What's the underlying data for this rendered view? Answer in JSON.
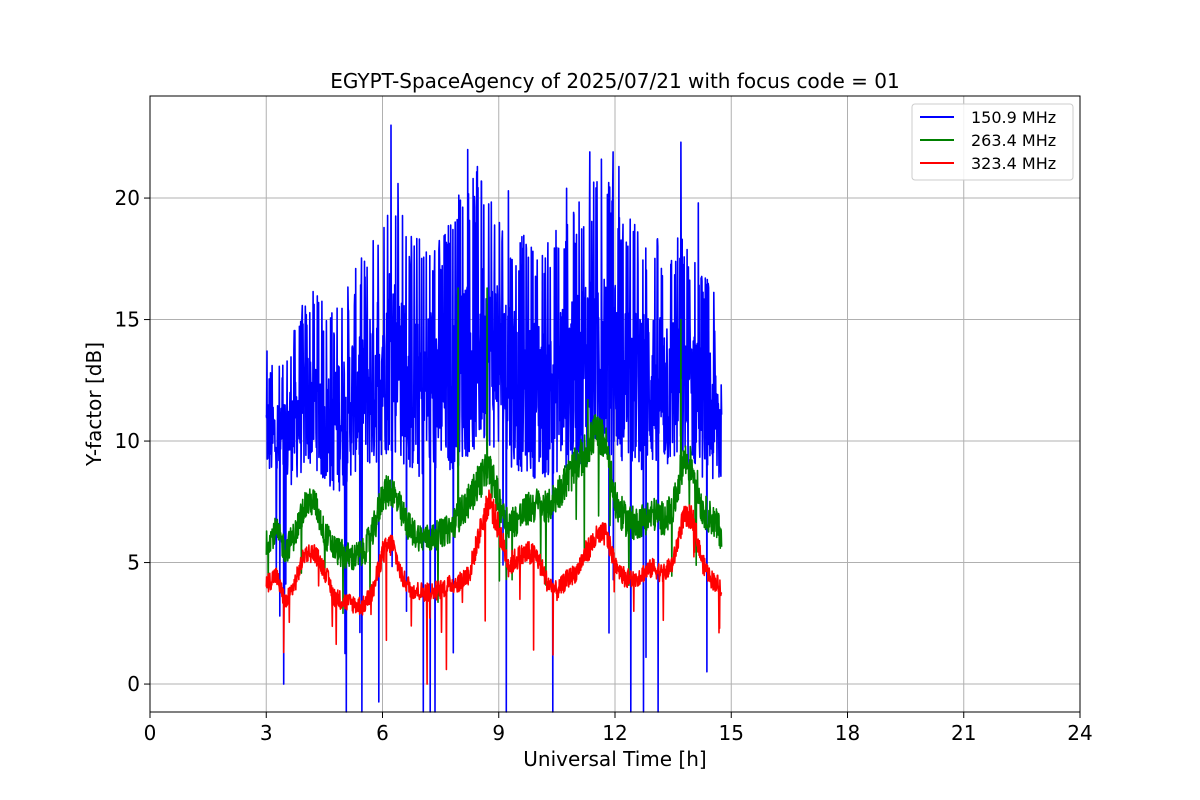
{
  "chart_data": {
    "type": "line",
    "title": "EGYPT-SpaceAgency of 2025/07/21 with focus code = 01",
    "xlabel": "Universal Time [h]",
    "ylabel": "Y-factor [dB]",
    "xlim": [
      0,
      24
    ],
    "ylim": [
      -1.15,
      24.2
    ],
    "xticks": [
      0,
      3,
      6,
      9,
      12,
      15,
      18,
      21,
      24
    ],
    "yticks": [
      0,
      5,
      10,
      15,
      20
    ],
    "grid": true,
    "legend_position": "top-right",
    "x_start": 3.0,
    "x_end": 14.75,
    "x": [
      3.0,
      3.25,
      3.5,
      3.75,
      4.0,
      4.25,
      4.5,
      4.75,
      5.0,
      5.25,
      5.5,
      5.75,
      6.0,
      6.25,
      6.5,
      6.75,
      7.0,
      7.25,
      7.5,
      7.75,
      8.0,
      8.25,
      8.5,
      8.75,
      9.0,
      9.25,
      9.5,
      9.75,
      10.0,
      10.25,
      10.5,
      10.75,
      11.0,
      11.25,
      11.5,
      11.75,
      12.0,
      12.25,
      12.5,
      12.75,
      13.0,
      13.25,
      13.5,
      13.75,
      14.0,
      14.25,
      14.5,
      14.75
    ],
    "series": [
      {
        "name": "150.9 MHz",
        "color": "#0000ff",
        "values": [
          10.5,
          10.0,
          10.2,
          10.8,
          11.5,
          11.8,
          11.0,
          10.8,
          11.2,
          11.8,
          12.2,
          12.5,
          13.5,
          14.0,
          13.2,
          12.5,
          12.2,
          12.5,
          12.2,
          12.8,
          13.5,
          13.8,
          14.0,
          14.2,
          13.6,
          13.0,
          12.5,
          12.4,
          12.2,
          12.2,
          12.6,
          12.8,
          13.0,
          13.4,
          13.8,
          14.0,
          13.5,
          13.0,
          12.8,
          12.6,
          12.5,
          12.4,
          12.5,
          12.6,
          12.3,
          12.0,
          11.2,
          10.5
        ],
        "spread": [
          1.8,
          2.0,
          2.2,
          2.5,
          2.8,
          2.8,
          3.0,
          3.0,
          3.2,
          3.2,
          3.5,
          3.8,
          4.2,
          4.5,
          4.2,
          4.0,
          4.0,
          4.0,
          4.0,
          4.2,
          4.5,
          4.5,
          4.5,
          4.5,
          4.2,
          4.0,
          3.8,
          3.8,
          3.8,
          3.8,
          4.0,
          4.0,
          4.2,
          4.5,
          4.5,
          4.5,
          4.2,
          4.0,
          4.0,
          3.8,
          3.8,
          3.8,
          3.8,
          3.8,
          3.5,
          3.5,
          3.2,
          3.0
        ],
        "peaks": [
          [
            3.45,
            0.0
          ],
          [
            3.02,
            13.7
          ],
          [
            3.35,
            2.8
          ],
          [
            4.35,
            15.7
          ],
          [
            5.45,
            16.1
          ],
          [
            6.22,
            23.0
          ],
          [
            6.4,
            20.6
          ],
          [
            6.62,
            3.0
          ],
          [
            8.2,
            22.0
          ],
          [
            8.45,
            21.3
          ],
          [
            8.55,
            20.7
          ],
          [
            9.25,
            20.3
          ],
          [
            10.75,
            20.4
          ],
          [
            11.35,
            21.9
          ],
          [
            11.65,
            21.6
          ],
          [
            11.95,
            21.9
          ],
          [
            12.1,
            21.3
          ],
          [
            12.8,
            1.1
          ],
          [
            13.7,
            22.3
          ],
          [
            14.15,
            19.8
          ]
        ]
      },
      {
        "name": "263.4 MHz",
        "color": "#008000",
        "values": [
          5.8,
          6.3,
          5.5,
          6.2,
          7.4,
          7.5,
          6.2,
          5.6,
          5.3,
          5.2,
          5.4,
          6.2,
          7.8,
          8.0,
          7.0,
          6.3,
          6.0,
          6.0,
          6.2,
          6.4,
          7.0,
          7.6,
          8.4,
          8.8,
          7.6,
          6.6,
          6.8,
          7.2,
          7.4,
          7.2,
          7.8,
          8.4,
          9.0,
          9.6,
          10.4,
          10.0,
          7.5,
          6.8,
          6.6,
          6.8,
          7.0,
          6.8,
          7.2,
          9.2,
          9.0,
          7.2,
          6.8,
          6.2
        ],
        "spread": [
          0.5,
          0.6,
          0.6,
          0.6,
          0.6,
          0.6,
          0.6,
          0.6,
          0.6,
          0.6,
          0.6,
          0.7,
          0.7,
          0.7,
          0.7,
          0.6,
          0.6,
          0.6,
          0.6,
          0.6,
          0.7,
          0.7,
          0.8,
          0.8,
          0.8,
          0.7,
          0.7,
          0.7,
          0.7,
          0.7,
          0.7,
          0.8,
          0.8,
          0.8,
          0.8,
          0.8,
          0.8,
          0.7,
          0.7,
          0.7,
          0.7,
          0.7,
          0.7,
          0.8,
          0.8,
          0.7,
          0.7,
          0.7
        ],
        "peaks": [
          [
            7.95,
            16.3
          ],
          [
            8.7,
            16.3
          ],
          [
            13.7,
            15.0
          ],
          [
            11.3,
            11.7
          ]
        ]
      },
      {
        "name": "323.4 MHz",
        "color": "#ff0000",
        "values": [
          4.1,
          4.5,
          3.3,
          4.2,
          5.4,
          5.4,
          4.7,
          3.6,
          3.4,
          3.3,
          3.2,
          3.8,
          5.4,
          5.8,
          4.4,
          3.9,
          3.8,
          3.8,
          3.9,
          4.1,
          4.2,
          4.6,
          6.2,
          7.6,
          6.4,
          4.9,
          5.2,
          5.4,
          5.2,
          4.2,
          3.8,
          4.3,
          4.6,
          5.4,
          6.0,
          6.2,
          5.0,
          4.4,
          4.3,
          4.6,
          4.8,
          4.5,
          5.0,
          6.8,
          6.9,
          5.0,
          4.3,
          4.0
        ],
        "spread": [
          0.4,
          0.4,
          0.4,
          0.4,
          0.4,
          0.4,
          0.4,
          0.4,
          0.4,
          0.4,
          0.4,
          0.4,
          0.5,
          0.5,
          0.4,
          0.4,
          0.4,
          0.4,
          0.4,
          0.4,
          0.4,
          0.5,
          0.5,
          0.6,
          0.6,
          0.5,
          0.5,
          0.5,
          0.5,
          0.4,
          0.4,
          0.4,
          0.4,
          0.5,
          0.5,
          0.5,
          0.4,
          0.4,
          0.4,
          0.4,
          0.4,
          0.4,
          0.4,
          0.5,
          0.5,
          0.4,
          0.4,
          0.4
        ],
        "peaks": [
          [
            3.45,
            1.3
          ],
          [
            7.15,
            0.0
          ],
          [
            7.65,
            0.6
          ],
          [
            6.1,
            1.8
          ],
          [
            9.9,
            1.4
          ],
          [
            10.4,
            1.2
          ],
          [
            14.7,
            2.3
          ],
          [
            8.65,
            2.6
          ]
        ]
      }
    ]
  }
}
